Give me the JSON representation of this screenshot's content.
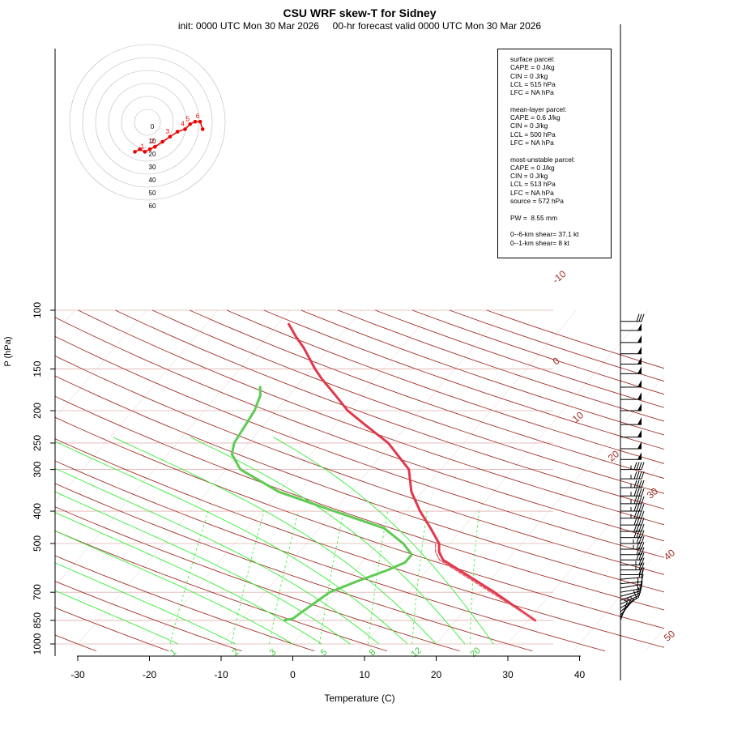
{
  "title": "CSU WRF skew-T for Sidney",
  "subtitle": "init: 0000 UTC Mon 30 Mar 2026     00-hr forecast valid 0000 UTC Mon 30 Mar 2026",
  "info_box": {
    "lines": [
      "surface parcel:",
      "CAPE = 0 J/kg",
      "CIN = 0 J/kg",
      "LCL = 515 hPa",
      "LFC = NA hPa",
      "",
      "mean-layer parcel:",
      "CAPE = 0.6 J/kg",
      "CIN = 0 J/kg",
      "LCL = 500 hPa",
      "LFC = NA hPa",
      "",
      "most-unstable parcel:",
      "CAPE = 0 J/kg",
      "CIN = 0 J/kg",
      "LCL = 513 hPa",
      "LFC = NA hPa",
      "source = 572 hPa",
      "",
      "PW =  8.55 mm",
      "",
      "0--6-km shear= 37.1 kt",
      "0--1-km shear= 8 kt"
    ]
  },
  "colors": {
    "temperature": "#e0394c",
    "dewpoint": "#5ecb53",
    "parcel": "#e06070",
    "isotherm": "#a03028",
    "dry_adiabat": "#a03028",
    "moist_adiabat": "#33ee33",
    "mixing_ratio": "#33ee33",
    "hodograph": "#ee0000",
    "isobar": "#e0b0b0"
  },
  "chart_data": {
    "type": "line",
    "title": "CSU WRF skew-T for Sidney",
    "xlabel": "Temperature (C)",
    "ylabel": "P (hPa)",
    "xlim": [
      -33,
      45
    ],
    "ylim": [
      1050,
      100
    ],
    "y_scale": "log",
    "x_ticks": [
      -30,
      -20,
      -10,
      0,
      10,
      20,
      30,
      40
    ],
    "y_ticks": [
      100,
      150,
      200,
      250,
      300,
      400,
      500,
      700,
      850,
      1000
    ],
    "isotherm_labels": [
      -10,
      0,
      10,
      20,
      30,
      40,
      50
    ],
    "mixing_ratio_labels": [
      "1",
      "2",
      "3",
      "5",
      "8",
      "12",
      "20"
    ],
    "series": [
      {
        "name": "temperature",
        "points": [
          [
            850,
            31.0
          ],
          [
            700,
            22.0
          ],
          [
            560,
            11.0
          ],
          [
            530,
            9.5
          ],
          [
            500,
            8.5
          ],
          [
            450,
            5.5
          ],
          [
            400,
            2.0
          ],
          [
            350,
            -1.5
          ],
          [
            300,
            -4.5
          ],
          [
            250,
            -10.5
          ],
          [
            220,
            -16.0
          ],
          [
            200,
            -20.0
          ],
          [
            180,
            -23.5
          ],
          [
            160,
            -27.5
          ],
          [
            150,
            -29.5
          ],
          [
            130,
            -33.5
          ],
          [
            120,
            -36.0
          ],
          [
            110,
            -38.5
          ]
        ]
      },
      {
        "name": "dewpoint",
        "points": [
          [
            850,
            -4.0
          ],
          [
            840,
            -3.0
          ],
          [
            800,
            -2.5
          ],
          [
            700,
            -1.0
          ],
          [
            650,
            1.5
          ],
          [
            600,
            4.5
          ],
          [
            570,
            6.0
          ],
          [
            540,
            6.0
          ],
          [
            500,
            3.5
          ],
          [
            450,
            -1.0
          ],
          [
            400,
            -10.0
          ],
          [
            350,
            -20.0
          ],
          [
            300,
            -28.0
          ],
          [
            270,
            -31.0
          ],
          [
            250,
            -32.0
          ],
          [
            200,
            -33.0
          ],
          [
            180,
            -34.0
          ],
          [
            170,
            -35.0
          ]
        ]
      },
      {
        "name": "surface parcel",
        "points": [
          [
            850,
            31.0
          ],
          [
            700,
            21.5
          ],
          [
            560,
            10.5
          ],
          [
            530,
            9.0
          ],
          [
            500,
            8.0
          ]
        ]
      }
    ],
    "wind_barbs": [
      {
        "p": 1000,
        "spd": 0,
        "dir": 0
      },
      {
        "p": 985,
        "spd": 0,
        "dir": 0
      },
      {
        "p": 970,
        "spd": 0,
        "dir": 0
      },
      {
        "p": 955,
        "spd": 0,
        "dir": 0
      },
      {
        "p": 940,
        "spd": 0,
        "dir": 0
      },
      {
        "p": 925,
        "spd": 0,
        "dir": 0
      },
      {
        "p": 910,
        "spd": 0,
        "dir": 0
      },
      {
        "p": 895,
        "spd": 0,
        "dir": 0
      },
      {
        "p": 880,
        "spd": 0,
        "dir": 0
      },
      {
        "p": 865,
        "spd": 0,
        "dir": 0
      },
      {
        "p": 850,
        "spd": 5,
        "dir": 340
      },
      {
        "p": 835,
        "spd": 5,
        "dir": 330
      },
      {
        "p": 820,
        "spd": 5,
        "dir": 320
      },
      {
        "p": 800,
        "spd": 10,
        "dir": 310
      },
      {
        "p": 780,
        "spd": 10,
        "dir": 300
      },
      {
        "p": 760,
        "spd": 10,
        "dir": 295
      },
      {
        "p": 740,
        "spd": 10,
        "dir": 290
      },
      {
        "p": 720,
        "spd": 10,
        "dir": 285
      },
      {
        "p": 700,
        "spd": 15,
        "dir": 280
      },
      {
        "p": 680,
        "spd": 15,
        "dir": 280
      },
      {
        "p": 660,
        "spd": 15,
        "dir": 275
      },
      {
        "p": 640,
        "spd": 20,
        "dir": 275
      },
      {
        "p": 620,
        "spd": 20,
        "dir": 270
      },
      {
        "p": 600,
        "spd": 25,
        "dir": 270
      },
      {
        "p": 580,
        "spd": 25,
        "dir": 270
      },
      {
        "p": 560,
        "spd": 30,
        "dir": 270
      },
      {
        "p": 540,
        "spd": 30,
        "dir": 270
      },
      {
        "p": 520,
        "spd": 35,
        "dir": 270
      },
      {
        "p": 500,
        "spd": 35,
        "dir": 270
      },
      {
        "p": 480,
        "spd": 40,
        "dir": 270
      },
      {
        "p": 460,
        "spd": 40,
        "dir": 270
      },
      {
        "p": 440,
        "spd": 40,
        "dir": 270
      },
      {
        "p": 420,
        "spd": 45,
        "dir": 270
      },
      {
        "p": 400,
        "spd": 45,
        "dir": 270
      },
      {
        "p": 380,
        "spd": 45,
        "dir": 270
      },
      {
        "p": 360,
        "spd": 45,
        "dir": 270
      },
      {
        "p": 340,
        "spd": 45,
        "dir": 270
      },
      {
        "p": 320,
        "spd": 45,
        "dir": 270
      },
      {
        "p": 300,
        "spd": 45,
        "dir": 270
      },
      {
        "p": 280,
        "spd": 50,
        "dir": 270
      },
      {
        "p": 260,
        "spd": 50,
        "dir": 270
      },
      {
        "p": 240,
        "spd": 50,
        "dir": 270
      },
      {
        "p": 220,
        "spd": 50,
        "dir": 270
      },
      {
        "p": 200,
        "spd": 50,
        "dir": 270
      },
      {
        "p": 185,
        "spd": 50,
        "dir": 270
      },
      {
        "p": 170,
        "spd": 50,
        "dir": 270
      },
      {
        "p": 155,
        "spd": 50,
        "dir": 270
      },
      {
        "p": 145,
        "spd": 50,
        "dir": 270
      },
      {
        "p": 135,
        "spd": 50,
        "dir": 270
      },
      {
        "p": 125,
        "spd": 50,
        "dir": 270
      },
      {
        "p": 115,
        "spd": 50,
        "dir": 270
      },
      {
        "p": 108,
        "spd": 30,
        "dir": 270
      }
    ],
    "hodograph": {
      "ring_labels": [
        "0",
        "10",
        "20",
        "30",
        "40",
        "50",
        "60"
      ],
      "point_labels": [
        "1",
        "2",
        "3",
        "4",
        "5",
        "6"
      ],
      "points": [
        [
          -2.5,
          -2.0
        ],
        [
          -1.5,
          -1.5
        ],
        [
          -0.5,
          -2.0
        ],
        [
          0.5,
          -1.5
        ],
        [
          1.5,
          -1.0
        ],
        [
          3.0,
          0.0
        ],
        [
          4.5,
          1.0
        ],
        [
          6.0,
          2.0
        ],
        [
          7.5,
          2.5
        ],
        [
          8.5,
          3.5
        ],
        [
          9.5,
          4.0
        ],
        [
          10.5,
          4.0
        ],
        [
          11.0,
          2.5
        ]
      ]
    }
  }
}
